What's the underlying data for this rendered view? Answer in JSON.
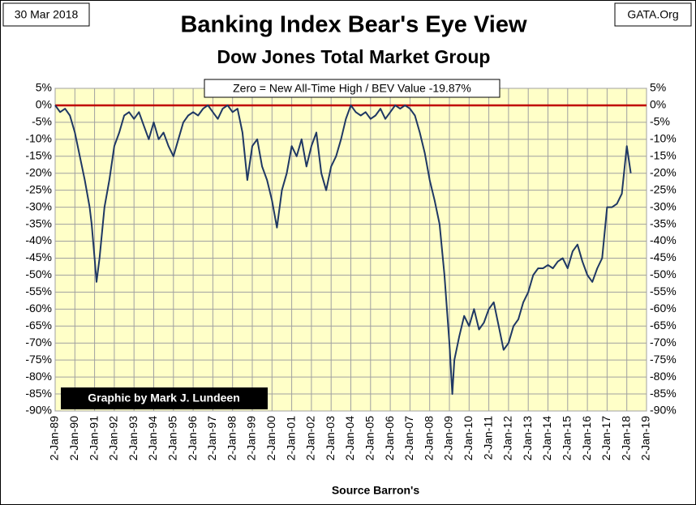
{
  "chart_data": {
    "type": "line",
    "title": "Banking Index Bear's Eye View",
    "subtitle": "Dow Jones Total Market Group",
    "date_label": "30 Mar 2018",
    "site_label": "GATA.Org",
    "annotation": "Zero = New All-Time High / BEV Value -19.87%",
    "credit": "Graphic by Mark J. Lundeen",
    "x_axis_label": "Source Barron's",
    "grid": true,
    "zero_line_color": "#c00000",
    "background": "#ffffc8",
    "series": [
      {
        "name": "BEV",
        "color": "#1f3864",
        "x": [
          1989.0,
          1989.25,
          1989.5,
          1989.75,
          1990.0,
          1990.25,
          1990.5,
          1990.75,
          1990.85,
          1991.0,
          1991.1,
          1991.25,
          1991.5,
          1991.75,
          1992.0,
          1992.25,
          1992.5,
          1992.75,
          1993.0,
          1993.25,
          1993.5,
          1993.75,
          1994.0,
          1994.25,
          1994.5,
          1994.75,
          1995.0,
          1995.25,
          1995.5,
          1995.75,
          1996.0,
          1996.25,
          1996.5,
          1996.75,
          1997.0,
          1997.25,
          1997.5,
          1997.75,
          1998.0,
          1998.25,
          1998.5,
          1998.75,
          1999.0,
          1999.25,
          1999.5,
          1999.75,
          2000.0,
          2000.25,
          2000.5,
          2000.75,
          2001.0,
          2001.25,
          2001.5,
          2001.75,
          2002.0,
          2002.25,
          2002.5,
          2002.75,
          2003.0,
          2003.25,
          2003.5,
          2003.75,
          2004.0,
          2004.25,
          2004.5,
          2004.75,
          2005.0,
          2005.25,
          2005.5,
          2005.75,
          2006.0,
          2006.25,
          2006.5,
          2006.75,
          2007.0,
          2007.25,
          2007.5,
          2007.75,
          2008.0,
          2008.25,
          2008.5,
          2008.75,
          2009.0,
          2009.15,
          2009.25,
          2009.5,
          2009.75,
          2010.0,
          2010.25,
          2010.5,
          2010.75,
          2011.0,
          2011.25,
          2011.5,
          2011.75,
          2012.0,
          2012.25,
          2012.5,
          2012.75,
          2013.0,
          2013.25,
          2013.5,
          2013.75,
          2014.0,
          2014.25,
          2014.5,
          2014.75,
          2015.0,
          2015.25,
          2015.5,
          2015.75,
          2016.0,
          2016.25,
          2016.5,
          2016.75,
          2017.0,
          2017.25,
          2017.5,
          2017.75,
          2018.0,
          2018.2
        ],
        "values": [
          0,
          -2,
          -1,
          -3,
          -8,
          -15,
          -22,
          -30,
          -35,
          -45,
          -52,
          -45,
          -30,
          -22,
          -12,
          -8,
          -3,
          -2,
          -4,
          -2,
          -6,
          -10,
          -5,
          -10,
          -8,
          -12,
          -15,
          -10,
          -5,
          -3,
          -2,
          -3,
          -1,
          0,
          -2,
          -4,
          -1,
          0,
          -2,
          -1,
          -8,
          -22,
          -12,
          -10,
          -18,
          -22,
          -28,
          -36,
          -25,
          -20,
          -12,
          -15,
          -10,
          -18,
          -12,
          -8,
          -20,
          -25,
          -18,
          -15,
          -10,
          -4,
          0,
          -2,
          -3,
          -2,
          -4,
          -3,
          -1,
          -4,
          -2,
          0,
          -1,
          0,
          -1,
          -3,
          -8,
          -14,
          -22,
          -28,
          -35,
          -50,
          -70,
          -85,
          -75,
          -68,
          -62,
          -65,
          -60,
          -66,
          -64,
          -60,
          -58,
          -65,
          -72,
          -70,
          -65,
          -63,
          -58,
          -55,
          -50,
          -48,
          -48,
          -47,
          -48,
          -46,
          -45,
          -48,
          -43,
          -41,
          -46,
          -50,
          -52,
          -48,
          -45,
          -30,
          -30,
          -29,
          -26,
          -12,
          -20
        ]
      }
    ],
    "xlim": [
      1989.0,
      2019.0
    ],
    "xticks": [
      {
        "value": 1989,
        "label": "2-Jan-89"
      },
      {
        "value": 1990,
        "label": "2-Jan-90"
      },
      {
        "value": 1991,
        "label": "2-Jan-91"
      },
      {
        "value": 1992,
        "label": "2-Jan-92"
      },
      {
        "value": 1993,
        "label": "2-Jan-93"
      },
      {
        "value": 1994,
        "label": "2-Jan-94"
      },
      {
        "value": 1995,
        "label": "2-Jan-95"
      },
      {
        "value": 1996,
        "label": "2-Jan-96"
      },
      {
        "value": 1997,
        "label": "2-Jan-97"
      },
      {
        "value": 1998,
        "label": "2-Jan-98"
      },
      {
        "value": 1999,
        "label": "2-Jan-99"
      },
      {
        "value": 2000,
        "label": "2-Jan-00"
      },
      {
        "value": 2001,
        "label": "2-Jan-01"
      },
      {
        "value": 2002,
        "label": "2-Jan-02"
      },
      {
        "value": 2003,
        "label": "2-Jan-03"
      },
      {
        "value": 2004,
        "label": "2-Jan-04"
      },
      {
        "value": 2005,
        "label": "2-Jan-05"
      },
      {
        "value": 2006,
        "label": "2-Jan-06"
      },
      {
        "value": 2007,
        "label": "2-Jan-07"
      },
      {
        "value": 2008,
        "label": "2-Jan-08"
      },
      {
        "value": 2009,
        "label": "2-Jan-09"
      },
      {
        "value": 2010,
        "label": "2-Jan-10"
      },
      {
        "value": 2011,
        "label": "2-Jan-11"
      },
      {
        "value": 2012,
        "label": "2-Jan-12"
      },
      {
        "value": 2013,
        "label": "2-Jan-13"
      },
      {
        "value": 2014,
        "label": "2-Jan-14"
      },
      {
        "value": 2015,
        "label": "2-Jan-15"
      },
      {
        "value": 2016,
        "label": "2-Jan-16"
      },
      {
        "value": 2017,
        "label": "2-Jan-17"
      },
      {
        "value": 2018,
        "label": "2-Jan-18"
      },
      {
        "value": 2019,
        "label": "2-Jan-19"
      }
    ],
    "ylim": [
      -90,
      5
    ],
    "yticks": [
      {
        "value": 5,
        "label": "5%"
      },
      {
        "value": 0,
        "label": "0%"
      },
      {
        "value": -5,
        "label": "-5%"
      },
      {
        "value": -10,
        "label": "-10%"
      },
      {
        "value": -15,
        "label": "-15%"
      },
      {
        "value": -20,
        "label": "-20%"
      },
      {
        "value": -25,
        "label": "-25%"
      },
      {
        "value": -30,
        "label": "-30%"
      },
      {
        "value": -35,
        "label": "-35%"
      },
      {
        "value": -40,
        "label": "-40%"
      },
      {
        "value": -45,
        "label": "-45%"
      },
      {
        "value": -50,
        "label": "-50%"
      },
      {
        "value": -55,
        "label": "-55%"
      },
      {
        "value": -60,
        "label": "-60%"
      },
      {
        "value": -65,
        "label": "-65%"
      },
      {
        "value": -70,
        "label": "-70%"
      },
      {
        "value": -75,
        "label": "-75%"
      },
      {
        "value": -80,
        "label": "-80%"
      },
      {
        "value": -85,
        "label": "-85%"
      },
      {
        "value": -90,
        "label": "-90%"
      }
    ]
  }
}
